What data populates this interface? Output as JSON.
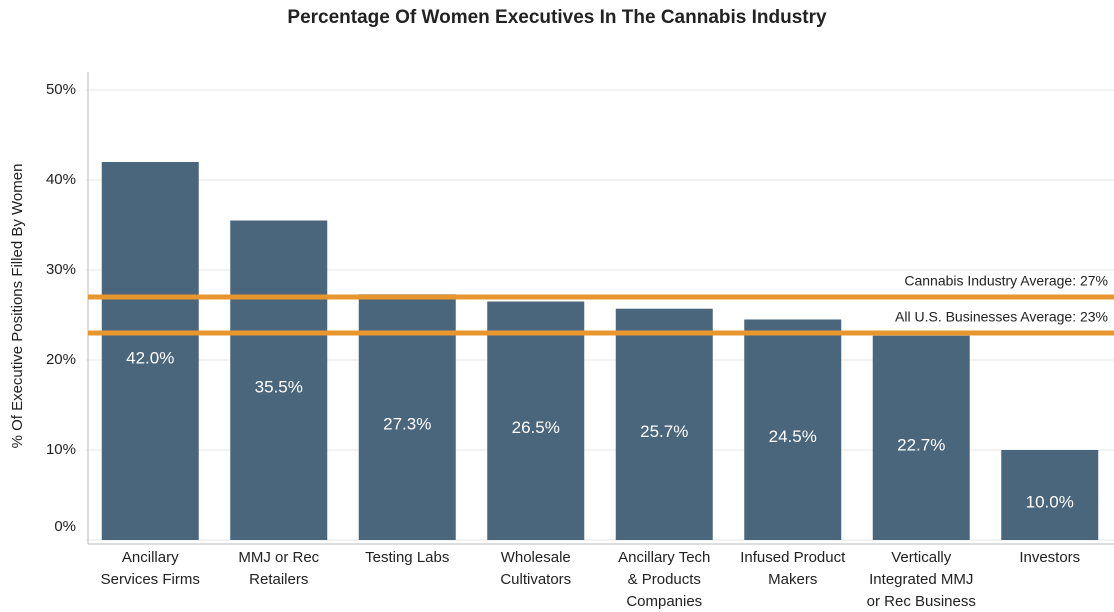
{
  "chart_data": {
    "type": "bar",
    "title": "Percentage Of Women Executives In The Cannabis Industry",
    "ylabel": "% Of Executive Positions Filled By Women",
    "categories": [
      "Ancillary\nServices Firms",
      "MMJ or Rec\nRetailers",
      "Testing Labs",
      "Wholesale\nCultivators",
      "Ancillary Tech\n& Products\nCompanies",
      "Infused Product\nMakers",
      "Vertically\nIntegrated MMJ\nor Rec Business",
      "Investors"
    ],
    "values": [
      42.0,
      35.5,
      27.3,
      26.5,
      25.7,
      24.5,
      22.7,
      10.0
    ],
    "value_labels": [
      "42.0%",
      "35.5%",
      "27.3%",
      "26.5%",
      "25.7%",
      "24.5%",
      "22.7%",
      "10.0%"
    ],
    "color": "#4a667c",
    "ylim": [
      0,
      50
    ],
    "yticks": [
      {
        "value": 0,
        "label": "0%"
      },
      {
        "value": 10,
        "label": "10%"
      },
      {
        "value": 20,
        "label": "20%"
      },
      {
        "value": 30,
        "label": "30%"
      },
      {
        "value": 40,
        "label": "40%"
      },
      {
        "value": 50,
        "label": "50%"
      }
    ],
    "grid": true,
    "reference_lines": [
      {
        "value": 27,
        "label": "Cannabis Industry Average: 27%",
        "color": "#e8962e"
      },
      {
        "value": 23,
        "label": "All U.S. Businesses Average: 23%",
        "color": "#e8962e"
      }
    ]
  }
}
